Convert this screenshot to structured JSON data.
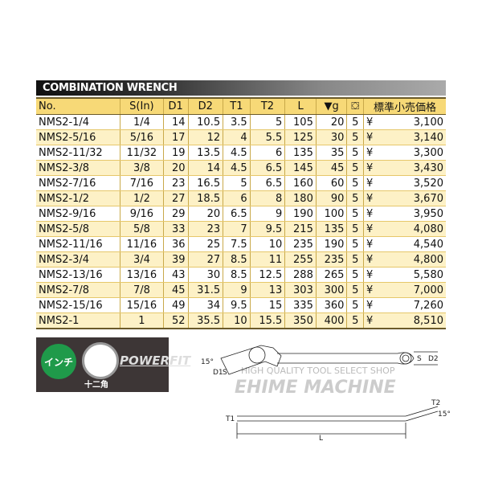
{
  "title": "COMBINATION WRENCH",
  "columns": [
    "No.",
    "S(In)",
    "D1",
    "D2",
    "T1",
    "T2",
    "L",
    "▼g",
    "box-icon",
    "標準小売価格"
  ],
  "currency": "¥",
  "rows": [
    [
      "NMS2-1/4",
      "1/4",
      "14",
      "10.5",
      "3.5",
      "5",
      "105",
      "20",
      "5",
      "3,100"
    ],
    [
      "NMS2-5/16",
      "5/16",
      "17",
      "12",
      "4",
      "5.5",
      "125",
      "30",
      "5",
      "3,140"
    ],
    [
      "NMS2-11/32",
      "11/32",
      "19",
      "13.5",
      "4.5",
      "6",
      "135",
      "35",
      "5",
      "3,300"
    ],
    [
      "NMS2-3/8",
      "3/8",
      "20",
      "14",
      "4.5",
      "6.5",
      "145",
      "45",
      "5",
      "3,430"
    ],
    [
      "NMS2-7/16",
      "7/16",
      "23",
      "16.5",
      "5",
      "6.5",
      "160",
      "60",
      "5",
      "3,520"
    ],
    [
      "NMS2-1/2",
      "1/2",
      "27",
      "18.5",
      "6",
      "8",
      "180",
      "90",
      "5",
      "3,670"
    ],
    [
      "NMS2-9/16",
      "9/16",
      "29",
      "20",
      "6.5",
      "9",
      "190",
      "100",
      "5",
      "3,950"
    ],
    [
      "NMS2-5/8",
      "5/8",
      "33",
      "23",
      "7",
      "9.5",
      "215",
      "135",
      "5",
      "4,080"
    ],
    [
      "NMS2-11/16",
      "11/16",
      "36",
      "25",
      "7.5",
      "10",
      "235",
      "190",
      "5",
      "4,540"
    ],
    [
      "NMS2-3/4",
      "3/4",
      "39",
      "27",
      "8.5",
      "11",
      "255",
      "235",
      "5",
      "4,800"
    ],
    [
      "NMS2-13/16",
      "13/16",
      "43",
      "30",
      "8.5",
      "12.5",
      "288",
      "265",
      "5",
      "5,580"
    ],
    [
      "NMS2-7/8",
      "7/8",
      "45",
      "31.5",
      "9",
      "13",
      "303",
      "300",
      "5",
      "7,000"
    ],
    [
      "NMS2-15/16",
      "15/16",
      "49",
      "34",
      "9.5",
      "15",
      "335",
      "360",
      "5",
      "7,260"
    ],
    [
      "NMS2-1",
      "1",
      "52",
      "35.5",
      "10",
      "15.5",
      "350",
      "400",
      "5",
      "8,510"
    ]
  ],
  "badge": {
    "inch": "インチ",
    "dodeca": "十二角",
    "brand": "POWERFIT"
  },
  "diagram": {
    "labels": [
      "15°",
      "D1",
      "S",
      "S",
      "D2",
      "T1",
      "T2",
      "15°",
      "L"
    ]
  },
  "watermark": {
    "line1": "HIGH QUALITY TOOL SELECT SHOP",
    "line2": "EHIME MACHINE"
  }
}
